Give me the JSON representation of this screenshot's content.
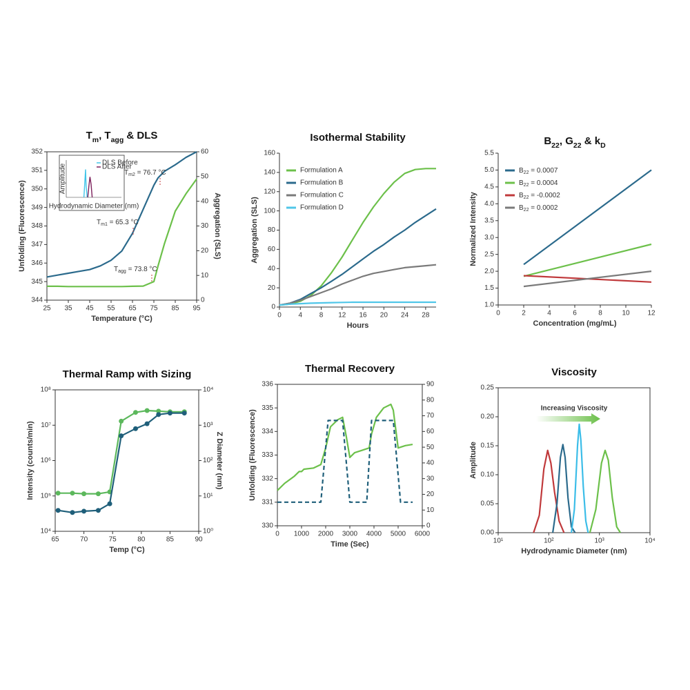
{
  "chart_data": [
    {
      "type": "line",
      "title": [
        "T",
        "m",
        ", T",
        "agg",
        " & DLS"
      ],
      "xlabel": "Temperature (°C)",
      "ylabel": "Unfolding (Fluorescence)",
      "y2label": "Aggregation (SLS)",
      "xlim": [
        25,
        95
      ],
      "xticks": [
        25,
        35,
        45,
        55,
        65,
        75,
        85,
        95
      ],
      "ylim": [
        344,
        352
      ],
      "yticks": [
        344,
        345,
        346,
        347,
        348,
        349,
        350,
        351,
        352
      ],
      "y2lim": [
        0,
        60
      ],
      "y2ticks": [
        0,
        10,
        20,
        30,
        40,
        50,
        60
      ],
      "box": true,
      "x": [
        25,
        30,
        35,
        40,
        45,
        50,
        55,
        60,
        65,
        70,
        75,
        77,
        80,
        85,
        90,
        95
      ],
      "series": [
        {
          "color": "#2b6a8c",
          "values": [
            345.25,
            345.35,
            345.45,
            345.55,
            345.65,
            345.85,
            346.15,
            346.65,
            347.6,
            348.9,
            350.2,
            350.6,
            350.95,
            351.3,
            351.7,
            352.0
          ]
        },
        {
          "color": "#6cc04a",
          "axis": "y2",
          "values": [
            5.6,
            5.6,
            5.5,
            5.5,
            5.5,
            5.5,
            5.5,
            5.5,
            5.6,
            5.7,
            7.5,
            14,
            23,
            36,
            43,
            49
          ]
        }
      ],
      "annotations": [
        {
          "text": [
            "T",
            "m2",
            " = 76.7 °C"
          ],
          "color": "#2b6a8c"
        },
        {
          "text": [
            "T",
            "m1",
            " = 65.3 °C"
          ],
          "color": "#2b6a8c"
        },
        {
          "text": [
            "T",
            "agg",
            " = 73.8 °C"
          ],
          "color": "#6cc04a"
        }
      ],
      "inset": {
        "xlabel": "Hydrodynamic Diameter (nm)",
        "ylabel": "Amplitude",
        "xlim": [
          0,
          10
        ],
        "ylim": [
          0,
          1
        ],
        "series": [
          {
            "name": "DLS Before",
            "color": "#40c4e8",
            "x": [
              3.2,
              3.4,
              3.5,
              3.6,
              3.8
            ],
            "values": [
              0,
              0.5,
              0.75,
              0.3,
              0
            ]
          },
          {
            "name": "DLS After",
            "color": "#7b1f5a",
            "x": [
              3.9,
              4.1,
              4.3,
              4.5,
              4.7
            ],
            "values": [
              0,
              0.3,
              0.55,
              0.35,
              0
            ]
          }
        ]
      }
    },
    {
      "type": "line",
      "title": "Isothermal Stability",
      "xlabel": "Hours",
      "ylabel": "Aggregation (SLS)",
      "xlim": [
        0,
        30
      ],
      "xticks": [
        0,
        4,
        8,
        12,
        16,
        20,
        24,
        28
      ],
      "ylim": [
        0,
        160
      ],
      "yticks": [
        0,
        20,
        40,
        60,
        80,
        100,
        120,
        140,
        160
      ],
      "box": false,
      "legend": "upper left",
      "x": [
        0,
        2,
        4,
        6,
        8,
        10,
        12,
        14,
        16,
        18,
        20,
        22,
        24,
        26,
        28,
        30
      ],
      "series": [
        {
          "name": "Formulation A",
          "color": "#6cc04a",
          "values": [
            2,
            3,
            6,
            12,
            22,
            36,
            52,
            70,
            88,
            104,
            118,
            130,
            139,
            143,
            144,
            144
          ]
        },
        {
          "name": "Formulation B",
          "color": "#2b6a8c",
          "values": [
            2,
            4,
            8,
            14,
            20,
            27,
            34,
            42,
            50,
            58,
            65,
            73,
            80,
            88,
            95,
            102
          ]
        },
        {
          "name": "Formulation C",
          "color": "#7a7a7a",
          "values": [
            2,
            4,
            7,
            11,
            15,
            19,
            24,
            28,
            32,
            35,
            37,
            39,
            41,
            42,
            43,
            44
          ]
        },
        {
          "name": "Formulation D",
          "color": "#4fc6e8",
          "values": [
            2,
            3,
            3.5,
            4,
            4.3,
            4.6,
            4.8,
            5,
            5,
            5,
            5,
            5,
            5,
            5,
            5,
            5
          ]
        }
      ]
    },
    {
      "type": "line",
      "title": [
        "B",
        "22",
        ", G",
        "22",
        " & k",
        "D"
      ],
      "xlabel": "Concentration (mg/mL)",
      "ylabel": "Normalized Intensity",
      "xlim": [
        0,
        12
      ],
      "xticks": [
        0,
        2,
        4,
        6,
        8,
        10,
        12
      ],
      "ylim": [
        1,
        5.5
      ],
      "yticks": [
        {
          "value": 1,
          "label": "1.0"
        },
        1.5,
        {
          "value": 2,
          "label": "2.0"
        },
        2.5,
        {
          "value": 3,
          "label": "3.0"
        },
        3.5,
        {
          "value": 4,
          "label": "4.0"
        },
        4.5,
        {
          "value": 5,
          "label": "5.0"
        },
        5.5
      ],
      "box": false,
      "legend": "upper left",
      "x": [
        2,
        12
      ],
      "series": [
        {
          "name": [
            "B",
            "22",
            " = 0.0007"
          ],
          "color": "#2b6a8c",
          "values": [
            2.2,
            5.0
          ]
        },
        {
          "name": [
            "B",
            "22",
            " = 0.0004"
          ],
          "color": "#6cc04a",
          "values": [
            1.85,
            2.8
          ]
        },
        {
          "name": [
            "B",
            "22",
            " = -0.0002"
          ],
          "color": "#c0393b",
          "values": [
            1.87,
            1.68
          ]
        },
        {
          "name": [
            "B",
            "22",
            " = 0.0002"
          ],
          "color": "#7a7a7a",
          "values": [
            1.55,
            2.0
          ]
        }
      ]
    },
    {
      "type": "line",
      "title": "Thermal Ramp with Sizing",
      "xlabel": "Temp (°C)",
      "ylabel": "Intensity (counts/min)",
      "y2label": "Z Diameter (nm)",
      "xlim": [
        65,
        90
      ],
      "xticks": [
        65,
        70,
        75,
        80,
        85,
        90
      ],
      "ylog": true,
      "ylim": [
        10000,
        100000000
      ],
      "yticks": [
        {
          "value": 10000,
          "label": "10⁴"
        },
        {
          "value": 100000,
          "label": "10⁵"
        },
        {
          "value": 1000000,
          "label": "10⁶"
        },
        {
          "value": 10000000,
          "label": "10⁷"
        },
        {
          "value": 100000000,
          "label": "10⁸"
        }
      ],
      "y2log": true,
      "y2lim": [
        1,
        10000
      ],
      "y2ticks": [
        {
          "value": 1,
          "label": "10⁰"
        },
        {
          "value": 10,
          "label": "10¹"
        },
        {
          "value": 100,
          "label": "10²"
        },
        {
          "value": 1000,
          "label": "10³"
        },
        {
          "value": 10000,
          "label": "10⁴"
        }
      ],
      "box": true,
      "markers": true,
      "ycolor": "#5cb85c",
      "y2color": "#1f5f7a",
      "x": [
        65.5,
        68,
        70,
        72.5,
        74.5,
        76.5,
        79,
        81,
        83,
        85,
        87.5
      ],
      "series": [
        {
          "color": "#5cb85c",
          "values": [
            120000,
            120000,
            115000,
            115000,
            130000,
            13000000,
            23000000,
            26000000,
            25000000,
            24000000,
            24000000
          ]
        },
        {
          "color": "#1f5f7a",
          "axis": "y2",
          "values": [
            3.9,
            3.4,
            3.7,
            3.9,
            6,
            500,
            800,
            1100,
            2000,
            2200,
            2200
          ]
        }
      ]
    },
    {
      "type": "line",
      "title": "Thermal Recovery",
      "xlabel": "Time (Sec)",
      "ylabel": "Unfolding (Fluorescence)",
      "xlim": [
        0,
        6000
      ],
      "xticks": [
        0,
        1000,
        2000,
        3000,
        4000,
        5000,
        6000
      ],
      "ylim": [
        330,
        336
      ],
      "yticks": [
        330,
        331,
        332,
        333,
        334,
        335,
        336
      ],
      "y2lim": [
        0,
        90
      ],
      "y2ticks": [
        0,
        10,
        20,
        30,
        40,
        50,
        60,
        70,
        80,
        90
      ],
      "box": true,
      "ycolor": "#5cb85c",
      "y2color": "#1f5f7a",
      "series": [
        {
          "color": "#6cc04a",
          "x": [
            0,
            300,
            700,
            900,
            1000,
            1100,
            1500,
            1800,
            2000,
            2200,
            2500,
            2700,
            2850,
            3000,
            3200,
            3500,
            3800,
            3900,
            4100,
            4400,
            4700,
            4800,
            5000,
            5300,
            5600
          ],
          "values": [
            331.5,
            331.8,
            332.1,
            332.3,
            332.3,
            332.4,
            332.45,
            332.6,
            333.3,
            334.2,
            334.5,
            334.6,
            333.8,
            332.9,
            333.1,
            333.2,
            333.3,
            333.9,
            334.6,
            335.0,
            335.15,
            334.9,
            333.3,
            333.4,
            333.45
          ]
        },
        {
          "color": "#1f5f7a",
          "axis": "y2",
          "dash": true,
          "x": [
            0,
            1800,
            2100,
            2700,
            3000,
            3700,
            3900,
            4800,
            5100,
            5600
          ],
          "values": [
            15,
            15,
            67,
            67,
            15,
            15,
            67,
            67,
            15,
            15
          ]
        }
      ]
    },
    {
      "type": "line",
      "title": "Viscosity",
      "xlabel": "Hydrodynamic Diameter (nm)",
      "ylabel": "Amplitude",
      "xlog": true,
      "xlim": [
        10,
        10000
      ],
      "xticks": [
        {
          "value": 10,
          "label": "10¹"
        },
        {
          "value": 100,
          "label": "10²"
        },
        {
          "value": 1000,
          "label": "10³"
        },
        {
          "value": 10000,
          "label": "10⁴"
        }
      ],
      "ylim": [
        0,
        0.25
      ],
      "yticks": [
        {
          "value": 0,
          "label": "0.00"
        },
        0.05,
        {
          "value": 0.1,
          "label": "0.10"
        },
        0.15,
        {
          "value": 0.2,
          "label": "0.20"
        },
        0.25
      ],
      "box": true,
      "annotations": [
        {
          "text": "Increasing Viscosity",
          "color": "#5cb85c"
        }
      ],
      "series": [
        {
          "color": "#c0393b",
          "x": [
            50,
            65,
            80,
            95,
            110,
            130,
            160,
            200
          ],
          "values": [
            0,
            0.03,
            0.11,
            0.142,
            0.12,
            0.07,
            0.02,
            0
          ]
        },
        {
          "color": "#2b6a8c",
          "x": [
            120,
            145,
            170,
            190,
            210,
            240,
            280,
            330
          ],
          "values": [
            0,
            0.05,
            0.13,
            0.152,
            0.13,
            0.06,
            0.01,
            0
          ]
        },
        {
          "color": "#3bbde8",
          "x": [
            280,
            320,
            370,
            400,
            430,
            480,
            540,
            600
          ],
          "values": [
            0,
            0.04,
            0.15,
            0.187,
            0.16,
            0.08,
            0.02,
            0
          ]
        },
        {
          "color": "#6cc04a",
          "x": [
            650,
            850,
            1100,
            1300,
            1500,
            1800,
            2200,
            2600
          ],
          "values": [
            0,
            0.04,
            0.12,
            0.142,
            0.125,
            0.06,
            0.01,
            0
          ]
        }
      ]
    }
  ]
}
